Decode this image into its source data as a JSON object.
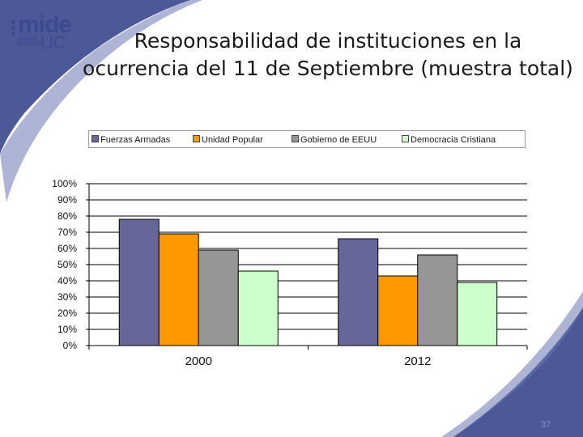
{
  "slide": {
    "title": "Responsabilidad de instituciones en la ocurrencia del 11 de Septiembre (muestra total)",
    "page_number": "37"
  },
  "logo": {
    "brand": "mide",
    "sub": "UC",
    "tagline_1": "CENTRO",
    "tagline_2": "MEDICIÓN"
  },
  "colors": {
    "background_accent": "#3d4a8f",
    "fuerzas_armadas": "#666699",
    "unidad_popular": "#ff9900",
    "gobierno_eeuu": "#969696",
    "democracia_cristiana": "#ccffcc"
  },
  "chart_data": {
    "type": "bar",
    "title": "",
    "xlabel": "",
    "ylabel": "",
    "categories": [
      "2000",
      "2012"
    ],
    "ylim": [
      0,
      100
    ],
    "yticks": [
      "0%",
      "10%",
      "20%",
      "30%",
      "40%",
      "50%",
      "60%",
      "70%",
      "80%",
      "90%",
      "100%"
    ],
    "grid": true,
    "legend_position": "top",
    "series": [
      {
        "name": "Fuerzas Armadas",
        "color": "#666699",
        "values": [
          78,
          66
        ]
      },
      {
        "name": "Unidad Popular",
        "color": "#ff9900",
        "values": [
          69,
          43
        ]
      },
      {
        "name": "Gobierno de EEUU",
        "color": "#969696",
        "values": [
          59,
          56
        ]
      },
      {
        "name": "Democracia Cristiana",
        "color": "#ccffcc",
        "values": [
          46,
          39
        ]
      }
    ]
  }
}
